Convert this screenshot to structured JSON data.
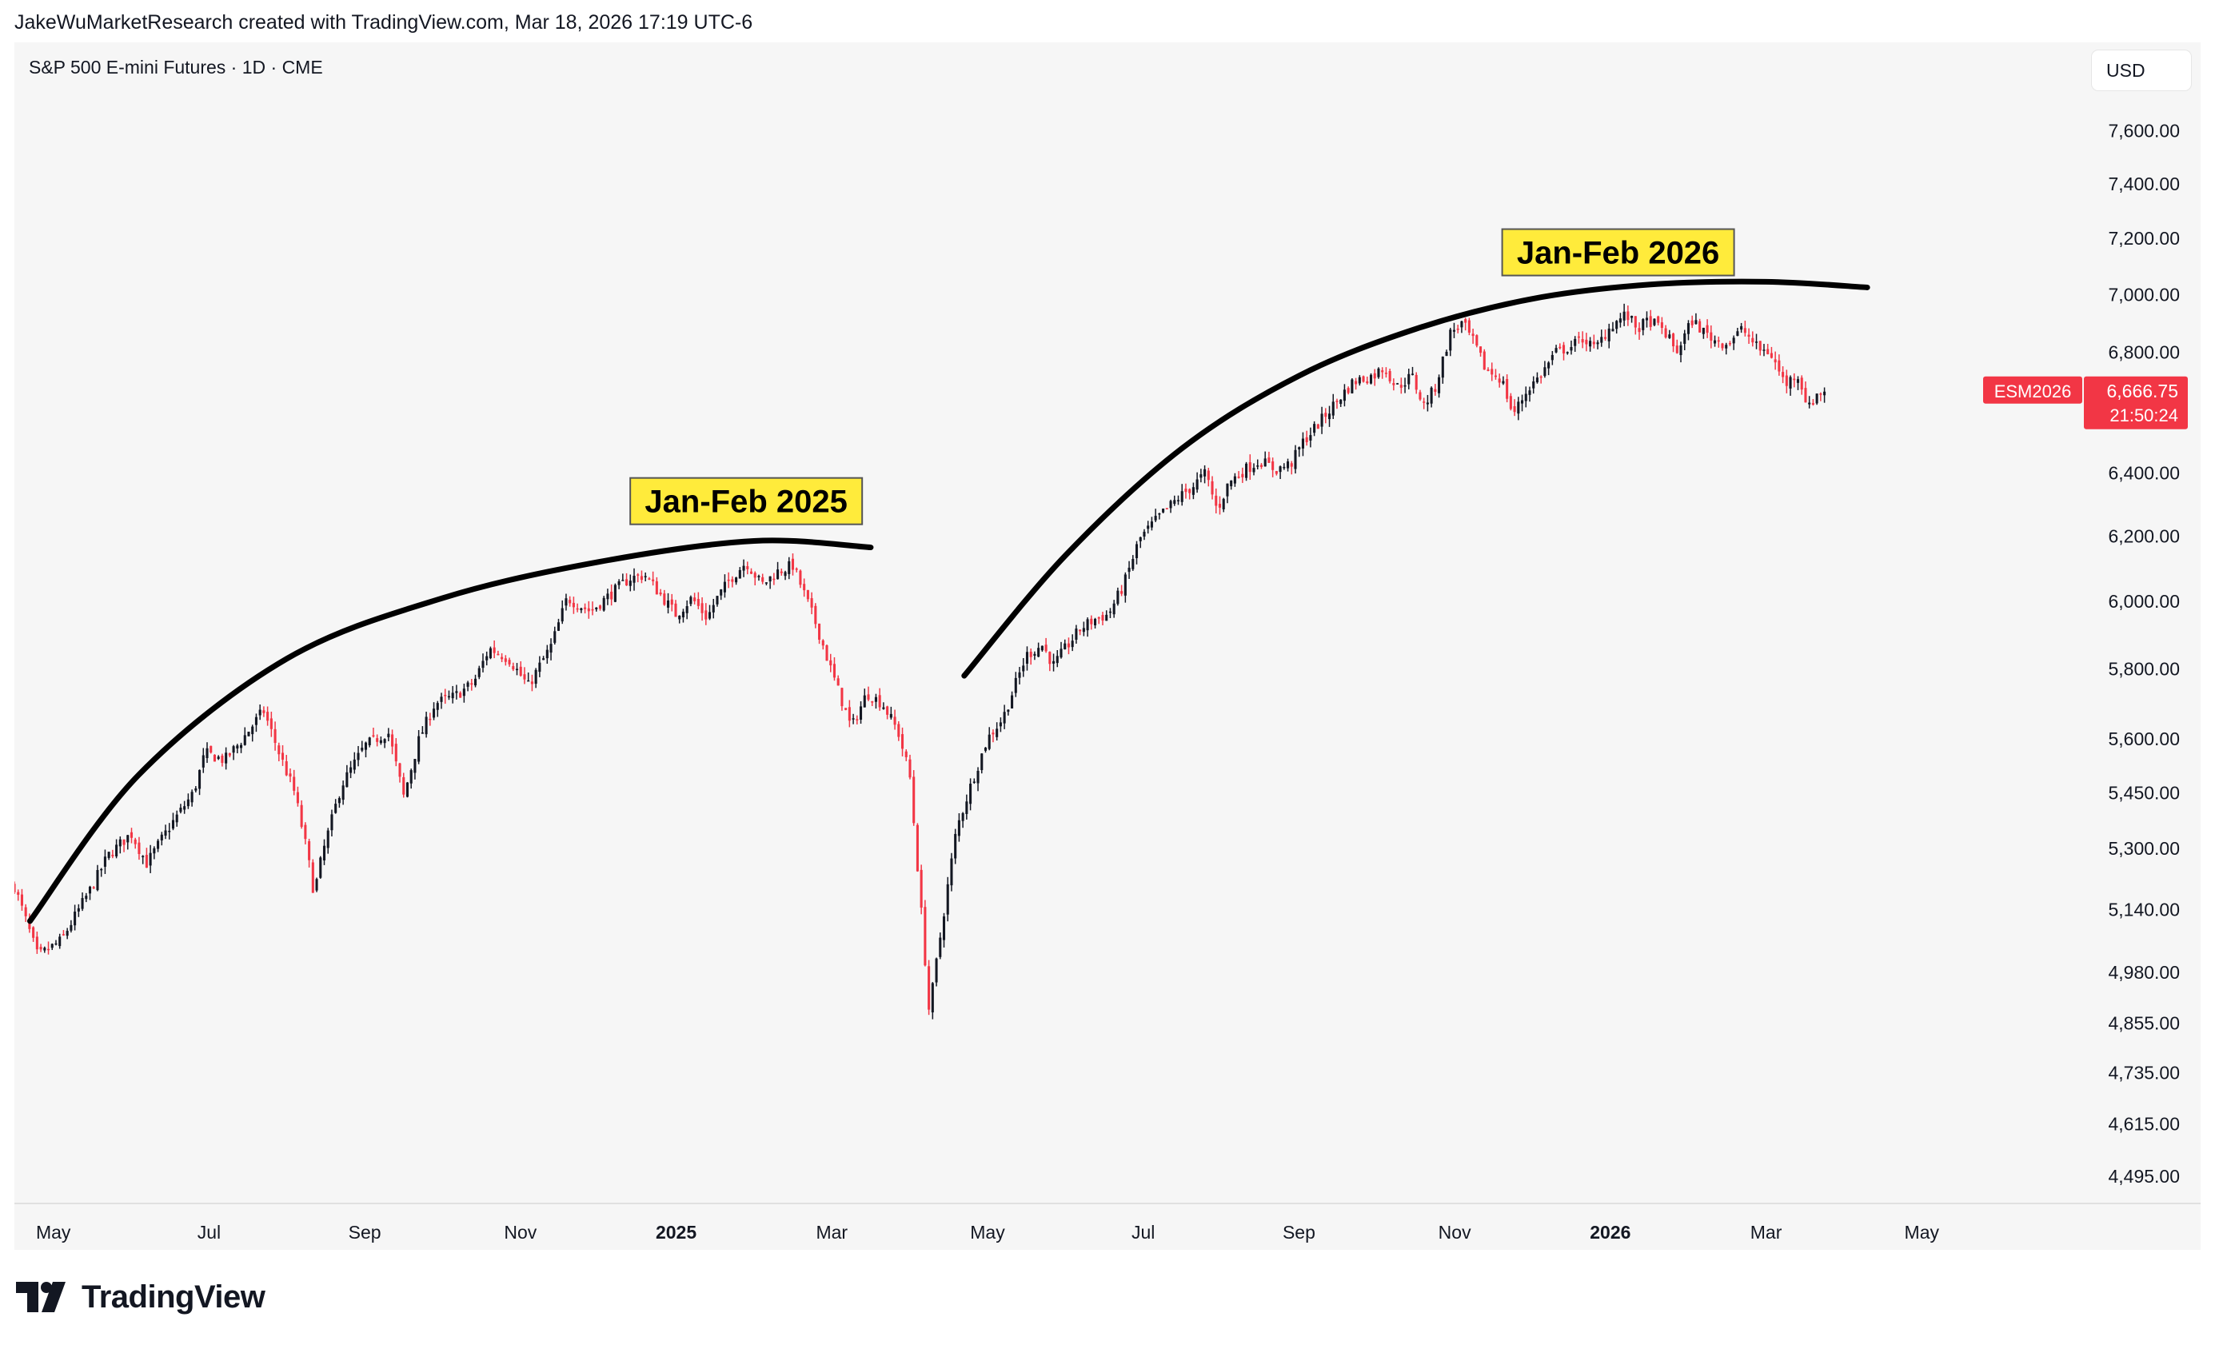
{
  "header": {
    "credit": "JakeWuMarketResearch created with TradingView.com, Mar 18, 2026 17:19 UTC-6"
  },
  "chart_header": {
    "symbol_line": "S&P 500 E-mini Futures · 1D · CME",
    "currency": "USD"
  },
  "footer": {
    "logo_text": "TradingView"
  },
  "colors": {
    "up": "#131722",
    "down": "#f23645",
    "background": "#f6f6f6",
    "annotation_bg": "#ffeb3b",
    "annotation_border": "#555555"
  },
  "chart_data": {
    "type": "candlestick",
    "scale": "log",
    "ylim": [
      4420,
      7850
    ],
    "y_ticks": [
      {
        "value": 7600,
        "label": "7,600.00"
      },
      {
        "value": 7400,
        "label": "7,400.00"
      },
      {
        "value": 7200,
        "label": "7,200.00"
      },
      {
        "value": 7000,
        "label": "7,000.00"
      },
      {
        "value": 6800,
        "label": "6,800.00"
      },
      {
        "value": 6400,
        "label": "6,400.00"
      },
      {
        "value": 6200,
        "label": "6,200.00"
      },
      {
        "value": 6000,
        "label": "6,000.00"
      },
      {
        "value": 5800,
        "label": "5,800.00"
      },
      {
        "value": 5600,
        "label": "5,600.00"
      },
      {
        "value": 5450,
        "label": "5,450.00"
      },
      {
        "value": 5300,
        "label": "5,300.00"
      },
      {
        "value": 5140,
        "label": "5,140.00"
      },
      {
        "value": 4980,
        "label": "4,980.00"
      },
      {
        "value": 4855,
        "label": "4,855.00"
      },
      {
        "value": 4735,
        "label": "4,735.00"
      },
      {
        "value": 4615,
        "label": "4,615.00"
      },
      {
        "value": 4495,
        "label": "4,495.00"
      }
    ],
    "x_range_months": [
      0,
      26.5
    ],
    "x_ticks": [
      {
        "m": 0.5,
        "label": "May",
        "bold": false
      },
      {
        "m": 2.5,
        "label": "Jul",
        "bold": false
      },
      {
        "m": 4.5,
        "label": "Sep",
        "bold": false
      },
      {
        "m": 6.5,
        "label": "Nov",
        "bold": false
      },
      {
        "m": 8.5,
        "label": "2025",
        "bold": true
      },
      {
        "m": 10.5,
        "label": "Mar",
        "bold": false
      },
      {
        "m": 12.5,
        "label": "May",
        "bold": false
      },
      {
        "m": 14.5,
        "label": "Jul",
        "bold": false
      },
      {
        "m": 16.5,
        "label": "Sep",
        "bold": false
      },
      {
        "m": 18.5,
        "label": "Nov",
        "bold": false
      },
      {
        "m": 20.5,
        "label": "2026",
        "bold": true
      },
      {
        "m": 22.5,
        "label": "Mar",
        "bold": false
      },
      {
        "m": 24.5,
        "label": "May",
        "bold": false
      }
    ],
    "last_price": {
      "symbol": "ESM2026",
      "value": 6666.75,
      "label": "6,666.75",
      "countdown": "21:50:24"
    },
    "price_path": [
      [
        0.0,
        5200
      ],
      [
        0.3,
        5020
      ],
      [
        0.6,
        5060
      ],
      [
        1.0,
        5200
      ],
      [
        1.2,
        5280
      ],
      [
        1.5,
        5340
      ],
      [
        1.7,
        5260
      ],
      [
        2.0,
        5360
      ],
      [
        2.3,
        5450
      ],
      [
        2.45,
        5560
      ],
      [
        2.7,
        5540
      ],
      [
        2.9,
        5590
      ],
      [
        3.2,
        5680
      ],
      [
        3.4,
        5560
      ],
      [
        3.6,
        5450
      ],
      [
        3.75,
        5300
      ],
      [
        3.85,
        5180
      ],
      [
        3.95,
        5280
      ],
      [
        4.2,
        5470
      ],
      [
        4.5,
        5580
      ],
      [
        4.8,
        5620
      ],
      [
        5.0,
        5440
      ],
      [
        5.2,
        5600
      ],
      [
        5.4,
        5700
      ],
      [
        5.65,
        5720
      ],
      [
        5.9,
        5760
      ],
      [
        6.1,
        5860
      ],
      [
        6.35,
        5830
      ],
      [
        6.6,
        5750
      ],
      [
        6.9,
        5870
      ],
      [
        7.1,
        6010
      ],
      [
        7.4,
        5970
      ],
      [
        7.65,
        6020
      ],
      [
        7.9,
        6070
      ],
      [
        8.1,
        6080
      ],
      [
        8.3,
        6020
      ],
      [
        8.5,
        5960
      ],
      [
        8.7,
        6010
      ],
      [
        8.9,
        5950
      ],
      [
        9.0,
        6000
      ],
      [
        9.2,
        6070
      ],
      [
        9.4,
        6120
      ],
      [
        9.6,
        6050
      ],
      [
        9.8,
        6090
      ],
      [
        10.0,
        6110
      ],
      [
        10.15,
        6020
      ],
      [
        10.3,
        5930
      ],
      [
        10.5,
        5790
      ],
      [
        10.75,
        5630
      ],
      [
        10.95,
        5730
      ],
      [
        11.15,
        5700
      ],
      [
        11.35,
        5620
      ],
      [
        11.5,
        5500
      ],
      [
        11.65,
        5130
      ],
      [
        11.75,
        4880
      ],
      [
        11.9,
        5080
      ],
      [
        12.1,
        5350
      ],
      [
        12.3,
        5480
      ],
      [
        12.5,
        5600
      ],
      [
        12.7,
        5660
      ],
      [
        12.85,
        5750
      ],
      [
        13.0,
        5840
      ],
      [
        13.2,
        5870
      ],
      [
        13.35,
        5810
      ],
      [
        13.5,
        5860
      ],
      [
        13.7,
        5920
      ],
      [
        13.9,
        5950
      ],
      [
        14.05,
        5960
      ],
      [
        14.25,
        6050
      ],
      [
        14.45,
        6190
      ],
      [
        14.7,
        6260
      ],
      [
        14.95,
        6320
      ],
      [
        15.15,
        6360
      ],
      [
        15.3,
        6400
      ],
      [
        15.45,
        6280
      ],
      [
        15.6,
        6370
      ],
      [
        15.8,
        6410
      ],
      [
        16.0,
        6440
      ],
      [
        16.2,
        6410
      ],
      [
        16.4,
        6430
      ],
      [
        16.55,
        6500
      ],
      [
        16.75,
        6560
      ],
      [
        17.0,
        6640
      ],
      [
        17.2,
        6700
      ],
      [
        17.45,
        6720
      ],
      [
        17.6,
        6750
      ],
      [
        17.75,
        6680
      ],
      [
        17.95,
        6720
      ],
      [
        18.1,
        6620
      ],
      [
        18.25,
        6680
      ],
      [
        18.45,
        6870
      ],
      [
        18.6,
        6900
      ],
      [
        18.75,
        6830
      ],
      [
        18.9,
        6740
      ],
      [
        19.1,
        6710
      ],
      [
        19.25,
        6590
      ],
      [
        19.45,
        6680
      ],
      [
        19.6,
        6720
      ],
      [
        19.8,
        6800
      ],
      [
        20.0,
        6820
      ],
      [
        20.15,
        6850
      ],
      [
        20.3,
        6810
      ],
      [
        20.5,
        6890
      ],
      [
        20.7,
        6930
      ],
      [
        20.85,
        6880
      ],
      [
        21.0,
        6910
      ],
      [
        21.2,
        6870
      ],
      [
        21.35,
        6800
      ],
      [
        21.55,
        6910
      ],
      [
        21.7,
        6870
      ],
      [
        21.85,
        6840
      ],
      [
        22.0,
        6830
      ],
      [
        22.2,
        6880
      ],
      [
        22.4,
        6810
      ],
      [
        22.55,
        6800
      ],
      [
        22.75,
        6690
      ],
      [
        22.9,
        6730
      ],
      [
        23.05,
        6610
      ],
      [
        23.15,
        6660
      ],
      [
        23.25,
        6666.75
      ]
    ],
    "arcs": [
      {
        "points": [
          [
            0.2,
            5110
          ],
          [
            1.6,
            5500
          ],
          [
            3.5,
            5830
          ],
          [
            5.5,
            6010
          ],
          [
            7.5,
            6120
          ],
          [
            9.5,
            6185
          ],
          [
            11.0,
            6165
          ]
        ]
      },
      {
        "points": [
          [
            12.2,
            5780
          ],
          [
            13.5,
            6140
          ],
          [
            15.0,
            6480
          ],
          [
            16.5,
            6720
          ],
          [
            18.0,
            6880
          ],
          [
            19.5,
            6985
          ],
          [
            21.0,
            7035
          ],
          [
            22.5,
            7045
          ],
          [
            23.8,
            7025
          ]
        ]
      }
    ],
    "annotations": [
      {
        "text": "Jan-Feb 2025",
        "m": 9.4,
        "v": 6310
      },
      {
        "text": "Jan-Feb 2026",
        "m": 20.6,
        "v": 7150
      }
    ]
  }
}
